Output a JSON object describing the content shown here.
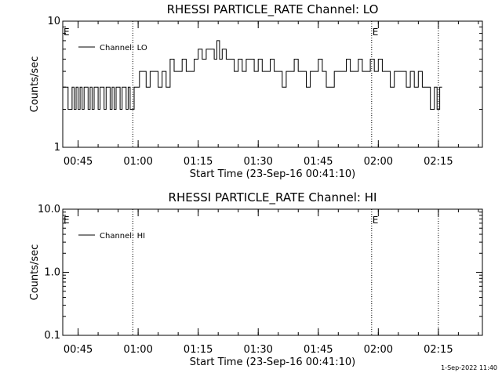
{
  "chart_data": [
    {
      "type": "line",
      "title": "RHESSI PARTICLE_RATE Channel: LO",
      "xlabel": "Start Time (23-Sep-16 00:41:10)",
      "ylabel": "Counts/sec",
      "yscale": "log",
      "ylim": [
        1,
        10
      ],
      "y_ticks": [
        "1",
        "10"
      ],
      "x_ticks": [
        "00:45",
        "01:00",
        "01:15",
        "01:30",
        "01:45",
        "02:00",
        "02:15"
      ],
      "xlim": [
        "00:41:10",
        "02:26:00"
      ],
      "legend": {
        "entries": [
          "Channel: LO"
        ],
        "placement": "top-left"
      },
      "grid": false,
      "event_lines": [
        "00:58:40",
        "01:58:20",
        "02:15:00"
      ],
      "event_labels": [
        {
          "text": "E",
          "x": "00:41:10"
        },
        {
          "text": "E",
          "x": "01:58:20"
        }
      ],
      "series": [
        {
          "name": "Channel: LO",
          "x": [
            "00:41:10",
            "00:41:50",
            "00:42:30",
            "00:43:00",
            "00:43:30",
            "00:44:00",
            "00:44:30",
            "00:45:00",
            "00:45:30",
            "00:46:00",
            "00:46:30",
            "00:47:00",
            "00:47:30",
            "00:48:00",
            "00:48:30",
            "00:49:00",
            "00:49:30",
            "00:50:00",
            "00:50:30",
            "00:51:00",
            "00:51:30",
            "00:52:00",
            "00:52:30",
            "00:53:00",
            "00:53:30",
            "00:54:00",
            "00:54:30",
            "00:55:00",
            "00:55:30",
            "00:56:00",
            "00:56:30",
            "00:57:00",
            "00:57:30",
            "00:58:00",
            "00:58:30",
            "00:59:00",
            "00:59:40",
            "01:00:20",
            "01:01:00",
            "01:02:00",
            "01:03:00",
            "01:04:00",
            "01:05:00",
            "01:06:00",
            "01:07:00",
            "01:08:00",
            "01:09:00",
            "01:10:00",
            "01:11:00",
            "01:12:00",
            "01:13:00",
            "01:14:00",
            "01:15:00",
            "01:16:00",
            "01:17:00",
            "01:18:00",
            "01:19:00",
            "01:19:40",
            "01:20:20",
            "01:21:00",
            "01:22:00",
            "01:23:00",
            "01:24:00",
            "01:25:00",
            "01:26:00",
            "01:27:00",
            "01:28:00",
            "01:29:00",
            "01:30:00",
            "01:31:00",
            "01:32:00",
            "01:33:00",
            "01:34:00",
            "01:35:00",
            "01:36:00",
            "01:37:00",
            "01:38:00",
            "01:39:00",
            "01:40:00",
            "01:41:00",
            "01:42:00",
            "01:43:00",
            "01:44:00",
            "01:45:00",
            "01:46:00",
            "01:47:00",
            "01:48:00",
            "01:49:00",
            "01:50:00",
            "01:51:00",
            "01:52:00",
            "01:53:00",
            "01:54:00",
            "01:55:00",
            "01:56:00",
            "01:57:00",
            "01:58:00",
            "01:59:00",
            "02:00:00",
            "02:01:00",
            "02:02:00",
            "02:03:00",
            "02:04:00",
            "02:05:00",
            "02:06:00",
            "02:07:00",
            "02:08:00",
            "02:09:00",
            "02:10:00",
            "02:11:00",
            "02:12:00",
            "02:13:00",
            "02:14:00",
            "02:14:40",
            "02:15:20"
          ],
          "y": [
            3,
            3,
            2,
            2,
            3,
            2,
            3,
            2,
            3,
            2,
            3,
            3,
            2,
            3,
            2,
            3,
            3,
            2,
            3,
            3,
            2,
            3,
            3,
            2,
            3,
            2,
            3,
            3,
            2,
            3,
            3,
            2,
            3,
            2,
            2,
            3,
            3,
            4,
            4,
            3,
            4,
            4,
            3,
            4,
            3,
            5,
            4,
            4,
            5,
            4,
            4,
            5,
            6,
            5,
            6,
            6,
            5,
            7,
            5,
            6,
            5,
            5,
            4,
            5,
            4,
            5,
            5,
            4,
            5,
            4,
            4,
            5,
            4,
            4,
            3,
            4,
            4,
            5,
            4,
            4,
            3,
            4,
            4,
            5,
            4,
            3,
            3,
            4,
            4,
            4,
            5,
            4,
            4,
            5,
            4,
            4,
            5,
            4,
            5,
            4,
            4,
            3,
            4,
            4,
            4,
            3,
            4,
            3,
            4,
            3,
            3,
            2,
            3,
            2,
            3
          ]
        }
      ]
    },
    {
      "type": "line",
      "title": "RHESSI PARTICLE_RATE Channel: HI",
      "xlabel": "Start Time (23-Sep-16 00:41:10)",
      "ylabel": "Counts/sec",
      "yscale": "log",
      "ylim": [
        0.1,
        10
      ],
      "y_ticks": [
        "0.1",
        "1.0",
        "10.0"
      ],
      "x_ticks": [
        "00:45",
        "01:00",
        "01:15",
        "01:30",
        "01:45",
        "02:00",
        "02:15"
      ],
      "xlim": [
        "00:41:10",
        "02:26:00"
      ],
      "legend": {
        "entries": [
          "Channel: HI"
        ],
        "placement": "top-left"
      },
      "grid": false,
      "event_lines": [
        "00:58:40",
        "01:58:20",
        "02:15:00"
      ],
      "event_labels": [
        {
          "text": "E",
          "x": "00:41:10"
        },
        {
          "text": "E",
          "x": "01:58:20"
        }
      ],
      "series": [
        {
          "name": "Channel: HI",
          "x": [],
          "y": []
        }
      ]
    }
  ],
  "footer": {
    "timestamp": "1-Sep-2022 11:40"
  }
}
